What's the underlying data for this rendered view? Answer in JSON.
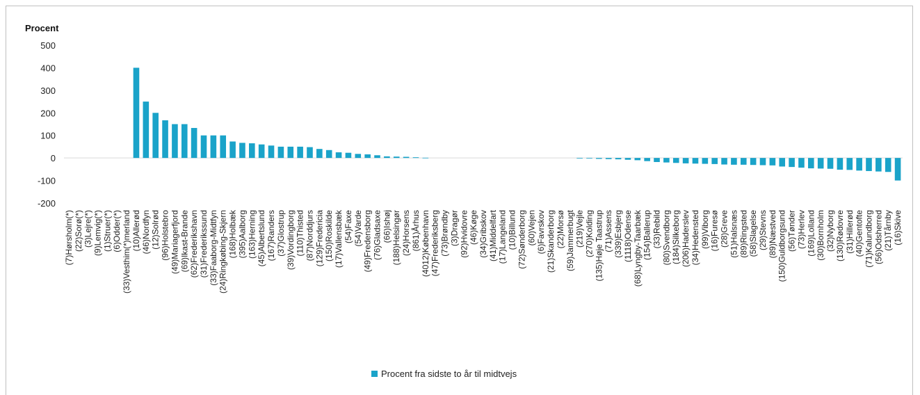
{
  "chart_data": {
    "type": "bar",
    "ylabel": "Procent",
    "ylim": [
      -200,
      500
    ],
    "yticks": [
      500,
      400,
      300,
      200,
      100,
      0,
      -100,
      -200
    ],
    "grid": false,
    "legend_position": "bottom",
    "bar_color": "#1aa3c9",
    "series": [
      {
        "name": "Procent fra sidste to år til midtvejs",
        "color": "#1aa3c9"
      }
    ],
    "categories": [
      "(7)Hørsholm(*)",
      "(22)Sorø(*)",
      "(3)Lejre(*)",
      "(9)Lemvig(*)",
      "(1)Struer(*)",
      "(6)Odder(*)",
      "(33)Vesthim(*)merland",
      "(10)Allerød",
      "(46)Nordfyn",
      "(12)Solrød",
      "(96)Holstebro",
      "(49)Mariagerfjord",
      "(69)Ikast-Brande",
      "(62)Frederikshavn",
      "(31)Frederikssund",
      "(33)Faaborg-Midtfyn",
      "(24)Ringkøbing-Skjern",
      "(168)Holbæk",
      "(395)Aalborg",
      "(163)Herning",
      "(45)Albertslund",
      "(167)Randers",
      "(37)Glostrup",
      "(39)Vordingborg",
      "(110)Thisted",
      "(87)Norddjurs",
      "(129)Fredericia",
      "(150)Roskilde",
      "(17)Vallensbæk",
      "(54)Faxe",
      "(54)Varde",
      "(49)Fredensborg",
      "(76)Gladsaxe",
      "(66)Ishøj",
      "(188)Helsingør",
      "(24)Horsens",
      "(861)Århus",
      "(4012)København",
      "(47)Frederiksberg",
      "(73)Brøndby",
      "(3)Dragør",
      "(92)Hvidovre",
      "(46)Køge",
      "(34)Gribskov",
      "(41)Middelfart",
      "(17)Langeland",
      "(10)Billund",
      "(72)Sønderborg",
      "(60)Vejen",
      "(6)Favrskov",
      "(21)Skanderborg",
      "(22)Morsø",
      "(59)Jammerbugt",
      "(219)Vejle",
      "(270)Kolding",
      "(135)Høje Taastrup",
      "(71)Assens",
      "(339)Esbjerg",
      "(1118)Odense",
      "(68)Lyngby-Taarbæk",
      "(154)Ballerup",
      "(33)Rebild",
      "(80)Svendborg",
      "(184)Silkeborg",
      "(206)Haderslev",
      "(34)Hedensted",
      "(99)Viborg",
      "(16)Furesø",
      "(28)Greve",
      "(51)Halsnæs",
      "(89)Ringsted",
      "(58)Slagelse",
      "(29)Stevns",
      "(89)Næstved",
      "(150)Guldborgsund",
      "(56)Tønder",
      "(73)Herlev",
      "(169)Lolland",
      "(30)Bornholm",
      "(32)Nyborg",
      "(130)Rødovre",
      "(31)Hillerød",
      "(40)Gentofte",
      "(71)Kalundborg",
      "(56)Odsherred",
      "(21)Tårnby",
      "(16)Skive"
    ],
    "values": [
      0,
      0,
      0,
      0,
      0,
      0,
      0,
      400,
      250,
      200,
      167,
      150,
      150,
      133,
      100,
      100,
      100,
      73,
      67,
      65,
      60,
      55,
      50,
      50,
      50,
      48,
      40,
      35,
      25,
      23,
      18,
      16,
      12,
      7,
      6,
      5,
      3,
      1,
      0,
      0,
      0,
      0,
      0,
      0,
      0,
      0,
      0,
      0,
      0,
      0,
      0,
      0,
      0,
      -1,
      -2,
      -4,
      -5,
      -6,
      -8,
      -10,
      -14,
      -18,
      -20,
      -22,
      -24,
      -25,
      -26,
      -27,
      -29,
      -30,
      -30,
      -31,
      -32,
      -33,
      -38,
      -40,
      -43,
      -46,
      -47,
      -48,
      -52,
      -53,
      -56,
      -58,
      -60,
      -62,
      -100
    ]
  }
}
